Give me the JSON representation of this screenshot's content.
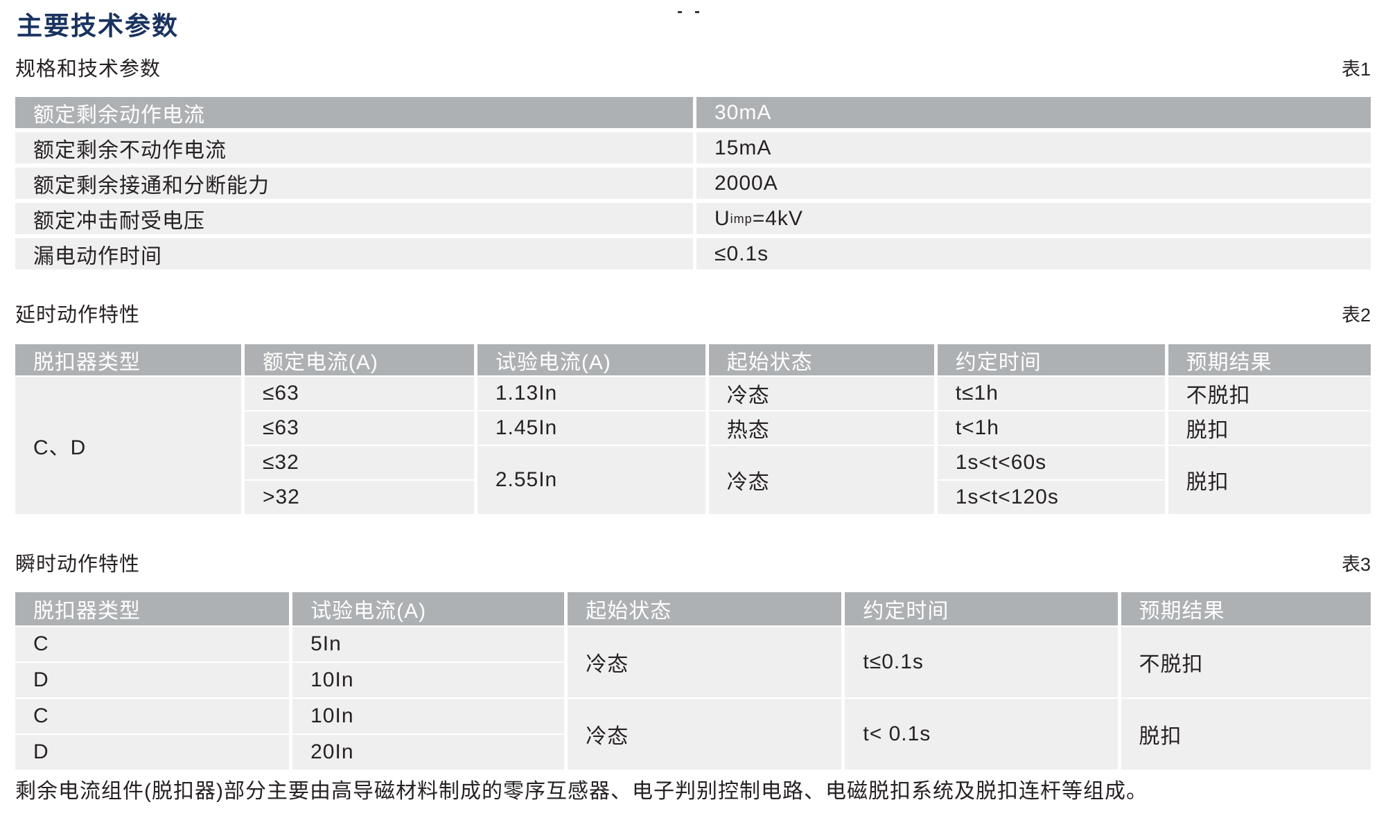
{
  "page": {
    "title": "主要技术参数",
    "footnote": "剩余电流组件(脱扣器)部分主要由高导磁材料制成的零序互感器、电子判别控制电路、电磁脱扣系统及脱扣连杆等组成。"
  },
  "colors": {
    "title_blue": "#19325f",
    "table_header_gray": "#aeb1b3",
    "table_row_gray": "#efefef",
    "body_text": "#262122",
    "header_text": "#ffffff"
  },
  "sections": [
    {
      "label": "规格和技术参数",
      "tag": "表1"
    },
    {
      "label": "延时动作特性",
      "tag": "表2"
    },
    {
      "label": "瞬时动作特性",
      "tag": "表3"
    }
  ],
  "table1": {
    "header_row": {
      "label": "额定剩余动作电流",
      "value": "30mA"
    },
    "rows": [
      {
        "label": "额定剩余不动作电流",
        "value": "15mA"
      },
      {
        "label": "额定剩余接通和分断能力",
        "value": "2000A"
      },
      {
        "label": "额定冲击耐受电压",
        "value_base": "U",
        "value_sub": "imp",
        "value_rest": "=4kV"
      },
      {
        "label": "漏电动作时间",
        "value": "≤0.1s"
      }
    ]
  },
  "table2": {
    "headers": [
      "脱扣器类型",
      "额定电流(A)",
      "试验电流(A)",
      "起始状态",
      "约定时间",
      "预期结果"
    ],
    "trip_type": "C、D",
    "rows": [
      {
        "rated_current": "≤63",
        "test_current": "1.13In",
        "initial_state": "冷态",
        "agreed_time": "t≤1h",
        "expected_result": "不脱扣"
      },
      {
        "rated_current": "≤63",
        "test_current": "1.45In",
        "initial_state": "热态",
        "agreed_time": "t<1h",
        "expected_result": "脱扣"
      },
      {
        "rated_current": "≤32",
        "test_current": "2.55In",
        "initial_state": "冷态",
        "agreed_time": "1s<t<60s",
        "expected_result": "脱扣"
      },
      {
        "rated_current": ">32",
        "agreed_time": "1s<t<120s"
      }
    ]
  },
  "table3": {
    "headers": [
      "脱扣器类型",
      "试验电流(A)",
      "起始状态",
      "约定时间",
      "预期结果"
    ],
    "rows": [
      {
        "trip_type": "C",
        "test_current": "5In",
        "initial_state": "冷态",
        "agreed_time": "t≤0.1s",
        "expected_result": "不脱扣"
      },
      {
        "trip_type": "D",
        "test_current": "10In"
      },
      {
        "trip_type": "C",
        "test_current": "10In",
        "initial_state": "冷态",
        "agreed_time": "t< 0.1s",
        "expected_result": "脱扣"
      },
      {
        "trip_type": "D",
        "test_current": "20In"
      }
    ]
  }
}
